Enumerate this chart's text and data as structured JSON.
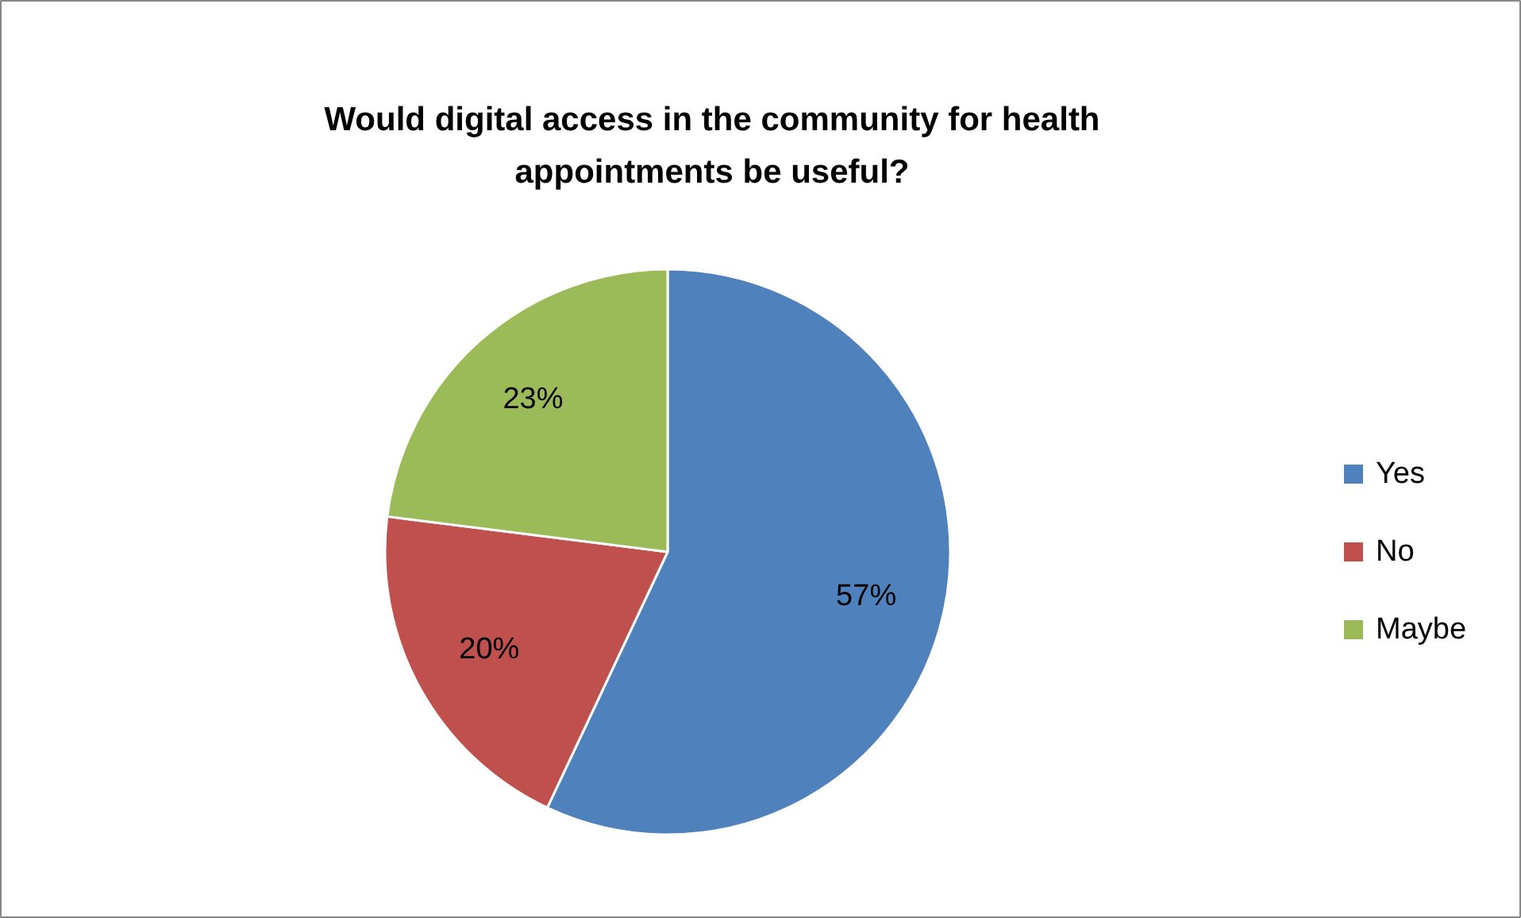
{
  "chart_data": {
    "type": "pie",
    "title": "Would digital access in the community for health appointments be useful?",
    "categories": [
      "Yes",
      "No",
      "Maybe"
    ],
    "values": [
      57,
      20,
      23
    ],
    "value_labels": [
      "57%",
      "20%",
      "23%"
    ],
    "colors": [
      "#4f81bd",
      "#c0504d",
      "#9bbb59"
    ],
    "legend": "right"
  }
}
